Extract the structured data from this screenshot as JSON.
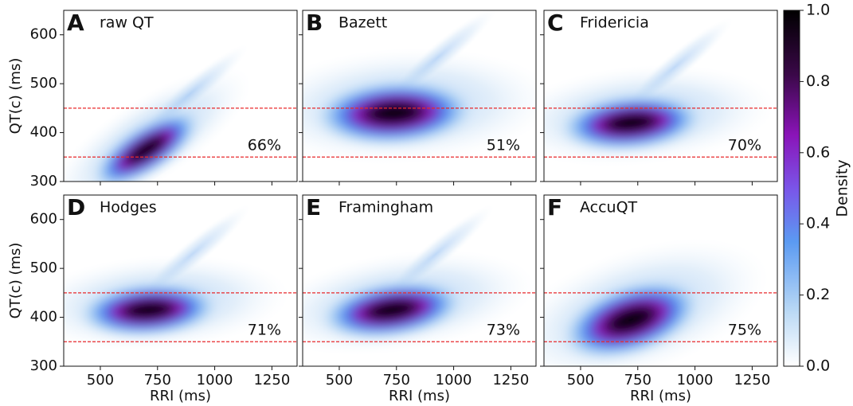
{
  "chart_data": [
    {
      "type": "density",
      "letter": "A",
      "title": "raw QT",
      "values": [
        66
      ],
      "value_labels": [
        "66%"
      ],
      "peak_x": 700,
      "peak_y": 365,
      "hlines": [
        350,
        450
      ],
      "line_color": "#e8282b",
      "xlim": [
        340,
        1360
      ],
      "xticks": [
        500,
        750,
        1000,
        1250
      ],
      "ylim": [
        300,
        650
      ],
      "yticks": [
        300,
        400,
        500,
        600
      ],
      "ylabel": "QT(c) (ms)"
    },
    {
      "type": "density",
      "letter": "B",
      "title": "Bazett",
      "values": [
        51
      ],
      "value_labels": [
        "51%"
      ],
      "peak_x": 740,
      "peak_y": 440,
      "hlines": [
        350,
        450
      ],
      "line_color": "#e8282b",
      "xlim": [
        340,
        1360
      ],
      "xticks": [
        500,
        750,
        1000,
        1250
      ],
      "ylim": [
        300,
        650
      ],
      "yticks": [
        300,
        400,
        500,
        600
      ]
    },
    {
      "type": "density",
      "letter": "C",
      "title": "Fridericia",
      "values": [
        70
      ],
      "value_labels": [
        "70%"
      ],
      "peak_x": 720,
      "peak_y": 420,
      "hlines": [
        350,
        450
      ],
      "line_color": "#e8282b",
      "xlim": [
        340,
        1360
      ],
      "xticks": [
        500,
        750,
        1000,
        1250
      ],
      "ylim": [
        300,
        650
      ],
      "yticks": [
        300,
        400,
        500,
        600
      ]
    },
    {
      "type": "density",
      "letter": "D",
      "title": "Hodges",
      "values": [
        71
      ],
      "value_labels": [
        "71%"
      ],
      "peak_x": 710,
      "peak_y": 415,
      "hlines": [
        350,
        450
      ],
      "line_color": "#e8282b",
      "xlim": [
        340,
        1360
      ],
      "xticks": [
        500,
        750,
        1000,
        1250
      ],
      "ylim": [
        300,
        650
      ],
      "yticks": [
        300,
        400,
        500,
        600
      ],
      "xlabel": "RRI (ms)",
      "ylabel": "QT(c) (ms)"
    },
    {
      "type": "density",
      "letter": "E",
      "title": "Framingham",
      "values": [
        73
      ],
      "value_labels": [
        "73%"
      ],
      "peak_x": 730,
      "peak_y": 415,
      "hlines": [
        350,
        450
      ],
      "line_color": "#e8282b",
      "xlim": [
        340,
        1360
      ],
      "xticks": [
        500,
        750,
        1000,
        1250
      ],
      "ylim": [
        300,
        650
      ],
      "yticks": [
        300,
        400,
        500,
        600
      ],
      "xlabel": "RRI (ms)"
    },
    {
      "type": "density",
      "letter": "F",
      "title": "AccuQT",
      "values": [
        75
      ],
      "value_labels": [
        "75%"
      ],
      "peak_x": 720,
      "peak_y": 395,
      "hlines": [
        350,
        450
      ],
      "line_color": "#e8282b",
      "xlim": [
        340,
        1360
      ],
      "xticks": [
        500,
        750,
        1000,
        1250
      ],
      "ylim": [
        300,
        650
      ],
      "yticks": [
        300,
        400,
        500,
        600
      ],
      "xlabel": "RRI (ms)"
    },
    {
      "type": "colorbar",
      "label": "Density",
      "ylim": [
        0,
        1
      ],
      "yticks": [
        {
          "value": 0,
          "label": "0.0"
        },
        {
          "value": 0.2,
          "label": "0.2"
        },
        {
          "value": 0.4,
          "label": "0.4"
        },
        {
          "value": 0.6,
          "label": "0.6"
        },
        {
          "value": 0.8,
          "label": "0.8"
        },
        {
          "value": 1,
          "label": "1.0"
        }
      ]
    }
  ]
}
